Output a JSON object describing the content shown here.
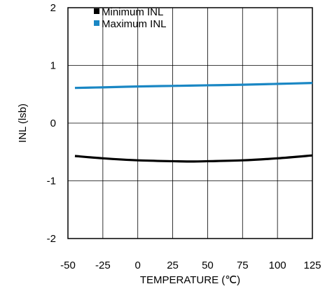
{
  "chart_data": {
    "type": "line",
    "xlabel": "TEMPERATURE (℃)",
    "ylabel": "INL (lsb)",
    "xlim": [
      -50,
      125
    ],
    "ylim": [
      -2,
      2
    ],
    "x_ticks": [
      -50,
      -25,
      0,
      25,
      50,
      75,
      100,
      125
    ],
    "x_tick_labels": [
      "-50",
      "-25",
      "0",
      "25",
      "50",
      "75",
      "100",
      "125"
    ],
    "y_ticks": [
      -2,
      -1,
      0,
      1,
      2
    ],
    "y_tick_labels": [
      "-2",
      "-1",
      "0",
      "1",
      "2"
    ],
    "grid": true,
    "legend_position": "top-left",
    "series": [
      {
        "name": "Minimum INL",
        "color": "#000000",
        "x": [
          -45,
          -25,
          0,
          25,
          40,
          50,
          75,
          100,
          125
        ],
        "y": [
          -0.57,
          -0.61,
          -0.645,
          -0.66,
          -0.665,
          -0.66,
          -0.645,
          -0.61,
          -0.56
        ]
      },
      {
        "name": "Maximum INL",
        "color": "#1a87c4",
        "x": [
          -45,
          -25,
          0,
          25,
          50,
          75,
          100,
          125
        ],
        "y": [
          0.61,
          0.62,
          0.635,
          0.645,
          0.655,
          0.665,
          0.68,
          0.695
        ]
      }
    ]
  }
}
